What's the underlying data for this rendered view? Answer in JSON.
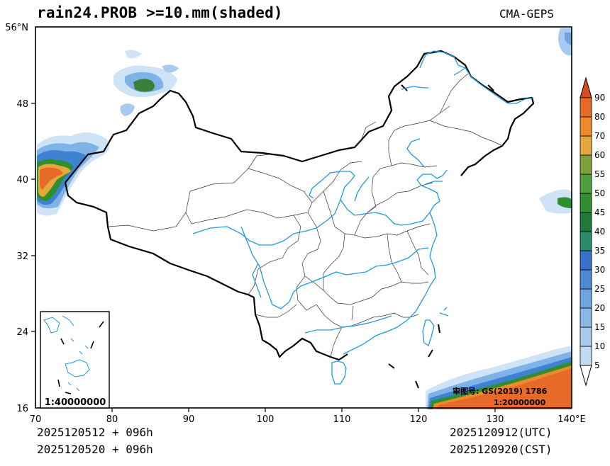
{
  "header": {
    "title": "rain24.PROB >=10.mm(shaded)",
    "source": "CMA-GEPS"
  },
  "axes": {
    "lat_ticks": [
      "56°N",
      "48",
      "40",
      "32",
      "24",
      "16"
    ],
    "lon_ticks": [
      "70",
      "80",
      "90",
      "100",
      "110",
      "120",
      "130",
      "140°E"
    ]
  },
  "colorbar": {
    "levels": [
      "5",
      "10",
      "15",
      "20",
      "25",
      "30",
      "35",
      "40",
      "45",
      "50",
      "55",
      "60",
      "70",
      "80",
      "90"
    ],
    "colors": [
      "#d9e9f8",
      "#c0dcf5",
      "#a6cbef",
      "#8ab9e8",
      "#6ea4e0",
      "#4f89d6",
      "#3a6fca",
      "#2a8a6a",
      "#1f7a3a",
      "#2f8f2f",
      "#4f9f3c",
      "#7ea03f",
      "#e6a83a",
      "#ef8a2a",
      "#e86a28",
      "#d94a20"
    ]
  },
  "inset": {
    "scale": "1:40000000"
  },
  "map_note": {
    "review_number": "审图号: GS(2019) 1786",
    "scale": "1:20000000"
  },
  "footer": {
    "init_utc": "2025120512 + 096h",
    "init_cst": "2025120520 + 096h",
    "valid_utc": "2025120912(UTC)",
    "valid_cst": "2025120920(CST)"
  }
}
